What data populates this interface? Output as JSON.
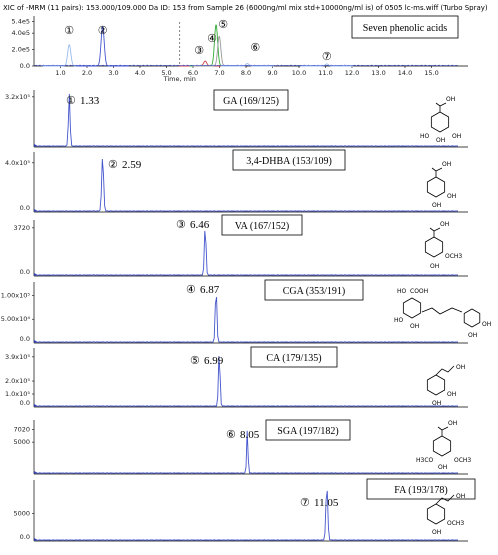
{
  "header": {
    "title": "XIC of -MRM (11 pairs): 153.000/109.000 Da ID: 153 from Sample 26 (6000ng/ml mix std+10000ng/ml is) of 0505 lc-ms.wiff (Turbo Spray)",
    "overlay_label": "Seven phenolic acids",
    "x_axis_label": "Time, min"
  },
  "structure_labels": {
    "oh": "OH",
    "ho": "HO",
    "cooh": "COOH",
    "och3": "OCH3",
    "h3co": "H3CO"
  },
  "colors": {
    "trace": "#4455cc",
    "trace_gray": "#999999",
    "trace_green": "#33aa33",
    "trace_red": "#cc4444",
    "trace_light": "#99bbee",
    "axis": "#000000"
  },
  "chart_data": [
    {
      "type": "line",
      "name": "overlay",
      "xlim": [
        0,
        16
      ],
      "x_ticks": [
        "1.0",
        "2.0",
        "3.0",
        "4.0",
        "5.0",
        "6.0",
        "7.0",
        "8.0",
        "9.0",
        "10.0",
        "11.0",
        "12.0",
        "13.0",
        "14.0",
        "15.0"
      ],
      "y_ticks": [
        "5.4e5",
        "4.0e5",
        "2.0e5",
        "0.0"
      ],
      "ylim": [
        0,
        5.6
      ],
      "peak_markers": [
        {
          "mark": "①",
          "x": 1.33
        },
        {
          "mark": "②",
          "x": 2.59
        },
        {
          "mark": "③",
          "x": 6.46
        },
        {
          "mark": "④",
          "x": 6.87
        },
        {
          "mark": "⑤",
          "x": 6.99
        },
        {
          "mark": "⑥",
          "x": 8.05
        },
        {
          "mark": "⑦",
          "x": 11.05
        }
      ],
      "series": [
        {
          "color_key": "trace_light",
          "peak_x": 1.33,
          "height": 2.6
        },
        {
          "color_key": "trace",
          "peak_x": 2.59,
          "height": 4.8
        },
        {
          "color_key": "trace_red",
          "peak_x": 6.46,
          "height": 0.6
        },
        {
          "color_key": "trace_green",
          "peak_x": 6.87,
          "height": 5.0
        },
        {
          "color_key": "trace_gray",
          "peak_x": 6.99,
          "height": 3.6
        },
        {
          "color_key": "trace_light",
          "peak_x": 8.05,
          "height": 0.3
        },
        {
          "color_key": "trace_light",
          "peak_x": 11.05,
          "height": 0.25
        }
      ],
      "annotations": [
        "dashed line at 5.5"
      ]
    },
    {
      "type": "line",
      "name": "GA",
      "mark": "①",
      "retention": "1.33",
      "label": "GA (169/125)",
      "peak_x": 1.33,
      "y_ticks": [
        "3.2x10⁵"
      ],
      "y_zero": ""
    },
    {
      "type": "line",
      "name": "3,4-DHBA",
      "mark": "②",
      "retention": "2.59",
      "label": "3,4-DHBA (153/109)",
      "peak_x": 2.59,
      "y_ticks": [
        "4.0x10⁵"
      ],
      "y_zero": "0.0"
    },
    {
      "type": "line",
      "name": "VA",
      "mark": "③",
      "retention": "6.46",
      "label": "VA (167/152)",
      "peak_x": 6.46,
      "y_ticks": [
        "3720"
      ],
      "y_zero": "0.0"
    },
    {
      "type": "line",
      "name": "CGA",
      "mark": "④",
      "retention": "6.87",
      "label": "CGA (353/191)",
      "peak_x": 6.87,
      "y_ticks": [
        "1.00x10⁵",
        "5.00x10⁴"
      ],
      "y_zero": "0.0"
    },
    {
      "type": "line",
      "name": "CA",
      "mark": "⑤",
      "retention": "6.99",
      "label": "CA (179/135)",
      "peak_x": 6.99,
      "y_ticks": [
        "3.9x10⁵",
        "2.0x10⁵",
        "1.0x10⁵"
      ],
      "y_zero": "0.0"
    },
    {
      "type": "line",
      "name": "SGA",
      "mark": "⑥",
      "retention": "8.05",
      "label": "SGA (197/182)",
      "peak_x": 8.05,
      "y_ticks": [
        "7020",
        "5000"
      ],
      "y_zero": ""
    },
    {
      "type": "line",
      "name": "FA",
      "mark": "⑦",
      "retention": "11.05",
      "label": "FA (193/178)",
      "peak_x": 11.05,
      "y_ticks": [
        "5000"
      ],
      "y_zero": "0.0"
    }
  ]
}
